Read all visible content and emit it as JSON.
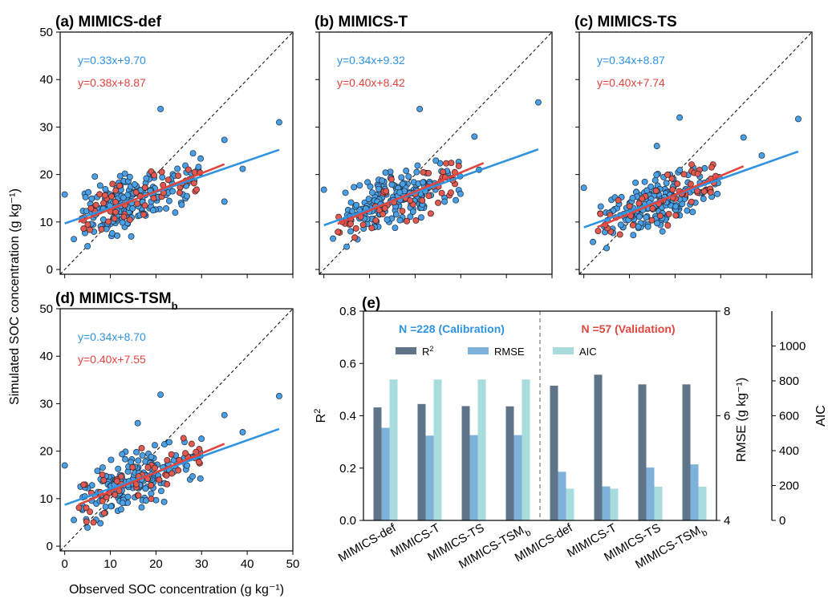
{
  "colors": {
    "calibration": "#2f93e0",
    "validation": "#e0453f",
    "calibration_point_fill": "#4aa0e6",
    "validation_point_fill": "#e05a52",
    "r2": "#5f7488",
    "rmse": "#7fb2da",
    "aic": "#a9dcdd"
  },
  "shared_axis_labels": {
    "ylabel": "Simulated SOC concentration (g kg⁻¹)",
    "xlabel": "Observed SOC concentration (g kg⁻¹)"
  },
  "chart_data": [
    {
      "type": "scatter",
      "title": "(a) MIMICS-def",
      "xlim": [
        -1,
        50
      ],
      "ylim": [
        -1,
        50
      ],
      "xticks": [
        0,
        10,
        20,
        30,
        40,
        50
      ],
      "yticks": [
        0,
        10,
        20,
        30,
        40,
        50
      ],
      "show_x_tick_labels": false,
      "show_y_tick_labels": true,
      "reference_line": "1:1 dashed",
      "fits": [
        {
          "label": "y=0.33x+9.70",
          "slope": 0.33,
          "intercept": 9.7,
          "x_range": [
            0,
            47
          ]
        },
        {
          "label": "y=0.38x+8.87",
          "slope": 0.38,
          "intercept": 8.87,
          "x_range": [
            3,
            35
          ]
        }
      ],
      "outlier_points": [
        [
          21,
          33.8
        ],
        [
          47,
          31.0
        ],
        [
          35,
          27.3
        ],
        [
          39,
          21.2
        ],
        [
          35,
          14.3
        ],
        [
          0,
          15.8
        ],
        [
          2,
          6.4
        ],
        [
          5,
          4.9
        ]
      ]
    },
    {
      "type": "scatter",
      "title": "(b) MIMICS-T",
      "xlim": [
        -1,
        50
      ],
      "ylim": [
        -1,
        50
      ],
      "xticks": [
        0,
        10,
        20,
        30,
        40,
        50
      ],
      "yticks": [
        0,
        10,
        20,
        30,
        40,
        50
      ],
      "show_x_tick_labels": false,
      "show_y_tick_labels": false,
      "reference_line": "1:1 dashed",
      "fits": [
        {
          "label": "y=0.34x+9.32",
          "slope": 0.34,
          "intercept": 9.32,
          "x_range": [
            0,
            47
          ]
        },
        {
          "label": "y=0.40x+8.42",
          "slope": 0.4,
          "intercept": 8.42,
          "x_range": [
            3,
            35
          ]
        }
      ],
      "outlier_points": [
        [
          21,
          33.8
        ],
        [
          47,
          35.2
        ],
        [
          33,
          28.0
        ],
        [
          34,
          21.0
        ],
        [
          0,
          16.8
        ],
        [
          2,
          6.5
        ],
        [
          5,
          4.8
        ]
      ]
    },
    {
      "type": "scatter",
      "title": "(c) MIMICS-TS",
      "xlim": [
        -1,
        50
      ],
      "ylim": [
        -1,
        50
      ],
      "xticks": [
        0,
        10,
        20,
        30,
        40,
        50
      ],
      "yticks": [
        0,
        10,
        20,
        30,
        40,
        50
      ],
      "show_x_tick_labels": false,
      "show_y_tick_labels": false,
      "reference_line": "1:1 dashed",
      "fits": [
        {
          "label": "y=0.34x+8.87",
          "slope": 0.34,
          "intercept": 8.87,
          "x_range": [
            0,
            47
          ]
        },
        {
          "label": "y=0.40x+7.74",
          "slope": 0.4,
          "intercept": 7.74,
          "x_range": [
            3,
            35
          ]
        }
      ],
      "outlier_points": [
        [
          21,
          32.0
        ],
        [
          47,
          31.7
        ],
        [
          35,
          27.8
        ],
        [
          16,
          26.0
        ],
        [
          39,
          24.0
        ],
        [
          0,
          17.2
        ],
        [
          2,
          5.8
        ],
        [
          5,
          4.5
        ]
      ]
    },
    {
      "type": "scatter",
      "title": "(d) MIMICS-TSM",
      "title_subscript": "b",
      "xlim": [
        -1,
        50
      ],
      "ylim": [
        -1,
        50
      ],
      "xticks": [
        0,
        10,
        20,
        30,
        40,
        50
      ],
      "yticks": [
        0,
        10,
        20,
        30,
        40,
        50
      ],
      "show_x_tick_labels": true,
      "show_y_tick_labels": true,
      "reference_line": "1:1 dashed",
      "fits": [
        {
          "label": "y=0.34x+8.70",
          "slope": 0.34,
          "intercept": 8.7,
          "x_range": [
            0,
            47
          ]
        },
        {
          "label": "y=0.40x+7.55",
          "slope": 0.4,
          "intercept": 7.55,
          "x_range": [
            3,
            35
          ]
        }
      ],
      "outlier_points": [
        [
          21,
          31.9
        ],
        [
          47,
          31.6
        ],
        [
          35,
          27.6
        ],
        [
          16,
          25.9
        ],
        [
          39,
          24.0
        ],
        [
          0,
          17.0
        ],
        [
          2,
          5.5
        ],
        [
          5,
          3.9
        ]
      ]
    },
    {
      "type": "bar",
      "title": "(e)",
      "categories": [
        "MIMICS-def",
        "MIMICS-T",
        "MIMICS-TS",
        "MIMICS-TSM",
        "MIMICS-def",
        "MIMICS-T",
        "MIMICS-TS",
        "MIMICS-TSM"
      ],
      "category_subscripts": [
        "",
        "",
        "",
        "b",
        "",
        "",
        "",
        "b"
      ],
      "groups": [
        {
          "label": "N =228 (Calibration)",
          "categories": [
            0,
            1,
            2,
            3
          ]
        },
        {
          "label": "N =57 (Validation)",
          "categories": [
            4,
            5,
            6,
            7
          ]
        }
      ],
      "series": [
        {
          "name": "R",
          "name_superscript": "2",
          "axis": "left",
          "values": [
            0.432,
            0.445,
            0.437,
            0.436,
            0.515,
            0.557,
            0.52,
            0.52
          ]
        },
        {
          "name": "RMSE",
          "axis": "right1",
          "values": [
            5.77,
            5.62,
            5.63,
            5.63,
            4.93,
            4.65,
            5.01,
            5.07
          ]
        },
        {
          "name": "AIC",
          "axis": "right2",
          "values": [
            808,
            808,
            808,
            808,
            182,
            182,
            193,
            193
          ]
        }
      ],
      "axes": {
        "left": {
          "label": "R",
          "label_superscript": "2",
          "ylim": [
            0.0,
            0.8
          ],
          "ticks": [
            "0.0",
            "0.2",
            "0.4",
            "0.6",
            "0.8"
          ]
        },
        "right1": {
          "label": "RMSE (g kg⁻¹)",
          "ylim": [
            4,
            8
          ],
          "ticks": [
            "4",
            "6",
            "8"
          ]
        },
        "right2": {
          "label": "AIC",
          "ylim": [
            0,
            1200
          ],
          "ticks": [
            "0",
            "200",
            "400",
            "600",
            "800",
            "1000"
          ]
        }
      },
      "divider": "dashed vertical line between calibration and validation groups"
    }
  ]
}
